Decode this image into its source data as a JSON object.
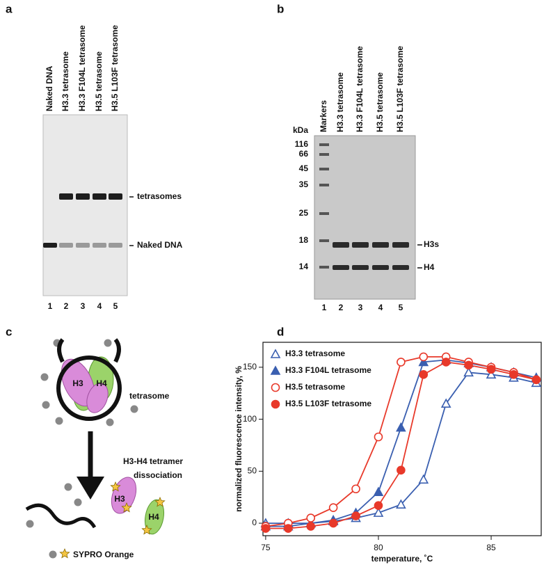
{
  "panel_labels": [
    "a",
    "b",
    "c",
    "d"
  ],
  "gel_a": {
    "lanes": [
      "Naked DNA",
      "H3.3 tetrasome",
      "H3.3 F104L tetrasome",
      "H3.5 tetrasome",
      "H3.5 L103F tetrasome"
    ],
    "lane_numbers": [
      "1",
      "2",
      "3",
      "4",
      "5"
    ],
    "band_labels": [
      "tetrasomes",
      "Naked DNA"
    ]
  },
  "gel_b": {
    "lanes": [
      "Markers",
      "H3.3 tetrasome",
      "H3.3 F104L tetrasome",
      "H3.5 tetrasome",
      "H3.5 L103F tetrasome"
    ],
    "lane_numbers": [
      "1",
      "2",
      "3",
      "4",
      "5"
    ],
    "size_unit": "kDa",
    "size_markers": [
      "116",
      "66",
      "45",
      "35",
      "25",
      "18",
      "14"
    ],
    "band_labels": [
      "H3s",
      "H4"
    ]
  },
  "diagram": {
    "complex_labels": [
      "H3",
      "H4"
    ],
    "complex_name": "tetrasome",
    "step_lines": [
      "H3-H4 tetramer",
      "dissociation"
    ],
    "free_labels": [
      "H3",
      "H4"
    ],
    "dye_name": "SYPRO Orange"
  },
  "chart_data": {
    "type": "line",
    "x_label": "temperature, ˚C",
    "y_label": "normalized fluorescence intensity, %",
    "x": [
      75,
      76,
      77,
      78,
      79,
      80,
      81,
      82,
      83,
      84,
      85,
      86,
      87
    ],
    "xlim": [
      74.88,
      87.22
    ],
    "xticks": [
      75,
      80,
      85
    ],
    "ylim": [
      -12,
      174
    ],
    "yticks": [
      0,
      50,
      100,
      150
    ],
    "legend": "upper left",
    "series": [
      {
        "name": "H3.3 tetrasome",
        "color": "#3a5fb0",
        "marker": "triangle",
        "filled": false,
        "values": [
          0,
          0,
          0,
          2,
          5,
          10,
          18,
          42,
          115,
          145,
          143,
          140,
          135
        ]
      },
      {
        "name": "H3.3 F104L tetrasome",
        "color": "#3a5fb0",
        "marker": "triangle",
        "filled": true,
        "values": [
          -3,
          -3,
          0,
          3,
          10,
          30,
          92,
          155,
          157,
          154,
          150,
          145,
          140
        ]
      },
      {
        "name": "H3.5 tetrasome",
        "color": "#e8392a",
        "marker": "circle",
        "filled": false,
        "values": [
          -3,
          0,
          5,
          15,
          33,
          83,
          155,
          160,
          160,
          155,
          150,
          145,
          138
        ]
      },
      {
        "name": "H3.5 L103F tetrasome",
        "color": "#e8392a",
        "marker": "circle",
        "filled": true,
        "values": [
          -5,
          -5,
          -3,
          0,
          7,
          17,
          51,
          143,
          155,
          152,
          148,
          143,
          138
        ]
      }
    ]
  }
}
